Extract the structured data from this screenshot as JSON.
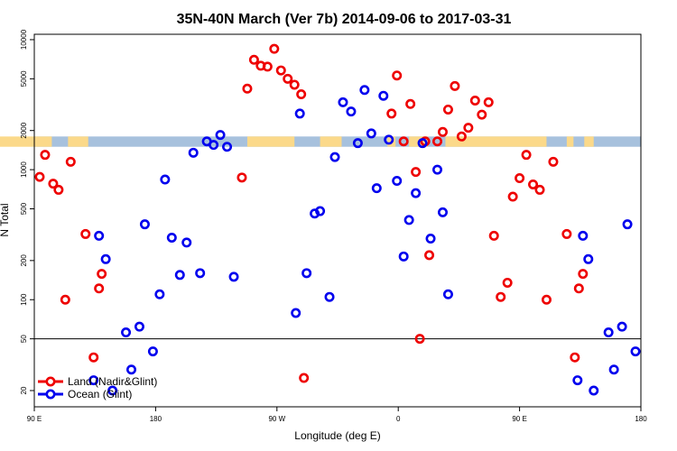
{
  "chart_data": {
    "type": "scatter",
    "title": "35N-40N March (Ver 7b)   2014-09-06 to 2017-03-31",
    "xlabel": "Longitude (deg E)",
    "ylabel": "N Total",
    "x_scale": "linear",
    "y_scale": "log",
    "xlim": [
      90,
      540
    ],
    "ylim": [
      15,
      11000
    ],
    "x_ticks": [
      {
        "value": 90,
        "label": "90 E"
      },
      {
        "value": 180,
        "label": "180"
      },
      {
        "value": 270,
        "label": "90 W"
      },
      {
        "value": 360,
        "label": "0"
      },
      {
        "value": 450,
        "label": "90 E"
      },
      {
        "value": 540,
        "label": "180"
      }
    ],
    "y_ticks": [
      {
        "value": 20,
        "label": "20"
      },
      {
        "value": 50,
        "label": "50"
      },
      {
        "value": 100,
        "label": "100"
      },
      {
        "value": 200,
        "label": "200"
      },
      {
        "value": 500,
        "label": "500"
      },
      {
        "value": 1000,
        "label": "1000"
      },
      {
        "value": 2000,
        "label": "2000"
      },
      {
        "value": 5000,
        "label": "5000"
      },
      {
        "value": 10000,
        "label": "10000"
      }
    ],
    "reference_line_y": 50,
    "background_band": {
      "y_range": [
        1500,
        1800
      ],
      "land_color": "#fbd98a",
      "ocean_color": "#a7c1dd"
    },
    "series": [
      {
        "name": "Land (Nadir&Glint)",
        "color": "#ee0000",
        "points": [
          [
            94,
            880
          ],
          [
            98,
            1300
          ],
          [
            104,
            780
          ],
          [
            108,
            700
          ],
          [
            113,
            100
          ],
          [
            117,
            1150
          ],
          [
            128,
            320
          ],
          [
            134,
            36
          ],
          [
            138,
            122
          ],
          [
            140,
            158
          ],
          [
            244,
            870
          ],
          [
            248,
            4200
          ],
          [
            253,
            7000
          ],
          [
            258,
            6300
          ],
          [
            263,
            6200
          ],
          [
            268,
            8500
          ],
          [
            273,
            5800
          ],
          [
            278,
            5000
          ],
          [
            283,
            4500
          ],
          [
            288,
            3800
          ],
          [
            290,
            25
          ],
          [
            355,
            2700
          ],
          [
            359,
            5300
          ],
          [
            364,
            1650
          ],
          [
            369,
            3200
          ],
          [
            373,
            960
          ],
          [
            376,
            50
          ],
          [
            380,
            1650
          ],
          [
            383,
            220
          ],
          [
            389,
            1650
          ],
          [
            393,
            1950
          ],
          [
            397,
            2900
          ],
          [
            402,
            4400
          ],
          [
            407,
            1800
          ],
          [
            412,
            2100
          ],
          [
            417,
            3400
          ],
          [
            422,
            2650
          ],
          [
            427,
            3300
          ],
          [
            431,
            310
          ],
          [
            436,
            105
          ],
          [
            441,
            135
          ],
          [
            445,
            620
          ],
          [
            450,
            860
          ],
          [
            455,
            1300
          ],
          [
            460,
            770
          ],
          [
            465,
            700
          ],
          [
            470,
            100
          ],
          [
            475,
            1150
          ],
          [
            485,
            320
          ],
          [
            491,
            36
          ],
          [
            494,
            122
          ],
          [
            497,
            158
          ]
        ]
      },
      {
        "name": "Ocean (Glint)",
        "color": "#0000ee",
        "points": [
          [
            134,
            24
          ],
          [
            138,
            310
          ],
          [
            143,
            205
          ],
          [
            148,
            20
          ],
          [
            158,
            56
          ],
          [
            162,
            29
          ],
          [
            168,
            62
          ],
          [
            172,
            380
          ],
          [
            178,
            40
          ],
          [
            183,
            110
          ],
          [
            187,
            840
          ],
          [
            192,
            300
          ],
          [
            198,
            155
          ],
          [
            203,
            275
          ],
          [
            208,
            1350
          ],
          [
            213,
            160
          ],
          [
            218,
            1650
          ],
          [
            223,
            1550
          ],
          [
            228,
            1850
          ],
          [
            233,
            1500
          ],
          [
            238,
            150
          ],
          [
            284,
            79
          ],
          [
            287,
            2700
          ],
          [
            292,
            160
          ],
          [
            298,
            460
          ],
          [
            302,
            480
          ],
          [
            309,
            105
          ],
          [
            313,
            1250
          ],
          [
            319,
            3300
          ],
          [
            325,
            2800
          ],
          [
            330,
            1600
          ],
          [
            335,
            4100
          ],
          [
            340,
            1900
          ],
          [
            344,
            720
          ],
          [
            349,
            3700
          ],
          [
            353,
            1700
          ],
          [
            359,
            820
          ],
          [
            364,
            215
          ],
          [
            368,
            410
          ],
          [
            373,
            660
          ],
          [
            378,
            1600
          ],
          [
            384,
            295
          ],
          [
            389,
            1000
          ],
          [
            393,
            470
          ],
          [
            397,
            110
          ],
          [
            493,
            24
          ],
          [
            497,
            310
          ],
          [
            501,
            205
          ],
          [
            505,
            20
          ],
          [
            516,
            56
          ],
          [
            520,
            29
          ],
          [
            526,
            62
          ],
          [
            530,
            380
          ],
          [
            536,
            40
          ]
        ]
      }
    ],
    "legend_position": "bottom-left"
  }
}
